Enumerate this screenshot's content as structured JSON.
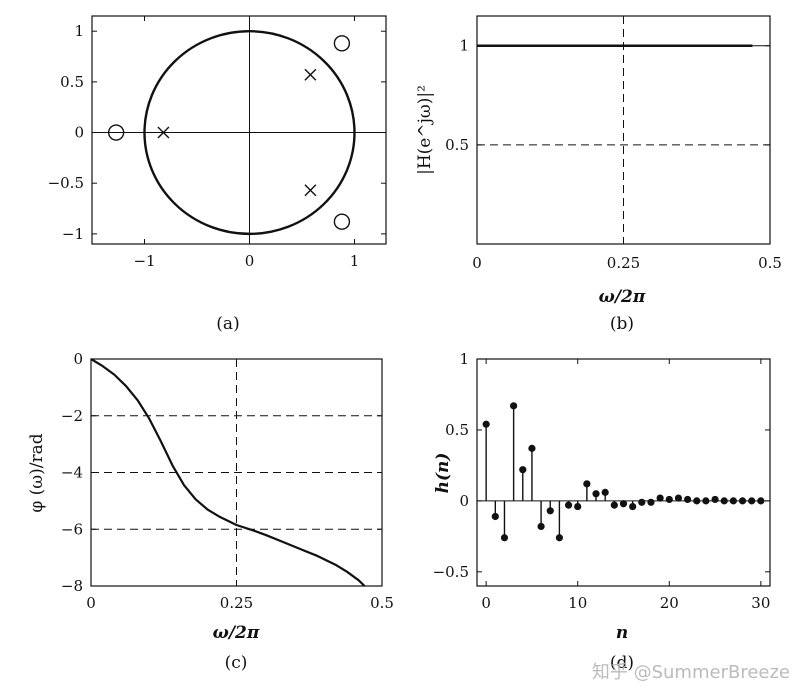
{
  "chart_data": [
    {
      "id": "a",
      "type": "scatter",
      "caption": "(a)",
      "xlim": [
        -1.5,
        1.3
      ],
      "ylim": [
        -1.1,
        1.15
      ],
      "xticks": [
        "−1",
        "0",
        "1"
      ],
      "xtick_values": [
        -1,
        0,
        1
      ],
      "yticks": [
        "1",
        "0.5",
        "0",
        "−0.5",
        "−1"
      ],
      "ytick_values": [
        1,
        0.5,
        0,
        -0.5,
        -1
      ],
      "unit_circle": true,
      "zeros": [
        [
          0.88,
          0.88
        ],
        [
          0.88,
          -0.88
        ],
        [
          -1.27,
          0
        ]
      ],
      "poles": [
        [
          0.58,
          0.57
        ],
        [
          0.58,
          -0.57
        ],
        [
          -0.82,
          0
        ]
      ]
    },
    {
      "id": "b",
      "type": "line",
      "caption": "(b)",
      "xlabel": "ω/2π",
      "ylabel": "|H(e^jω)|²",
      "xlim": [
        0,
        0.5
      ],
      "ylim": [
        0,
        1.15
      ],
      "xticks": [
        "0",
        "0.25",
        "0.5"
      ],
      "xtick_values": [
        0,
        0.25,
        0.5
      ],
      "yticks": [
        "1",
        "0.5"
      ],
      "ytick_values": [
        1,
        0.5
      ],
      "x": [
        0,
        0.47
      ],
      "y": [
        1,
        1
      ]
    },
    {
      "id": "c",
      "type": "line",
      "caption": "(c)",
      "xlabel": "ω/2π",
      "ylabel": "φ (ω)/rad",
      "xlim": [
        0,
        0.5
      ],
      "ylim": [
        -8,
        0
      ],
      "xticks": [
        "0",
        "0.25",
        "0.5"
      ],
      "xtick_values": [
        0,
        0.25,
        0.5
      ],
      "yticks": [
        "0",
        "−2",
        "−4",
        "−6",
        "−8"
      ],
      "ytick_values": [
        0,
        -2,
        -4,
        -6,
        -8
      ],
      "x": [
        0,
        0.02,
        0.04,
        0.06,
        0.08,
        0.1,
        0.12,
        0.14,
        0.16,
        0.18,
        0.2,
        0.22,
        0.25,
        0.28,
        0.3,
        0.33,
        0.36,
        0.39,
        0.42,
        0.44,
        0.46,
        0.47
      ],
      "y": [
        0,
        -0.25,
        -0.55,
        -0.95,
        -1.45,
        -2.1,
        -2.9,
        -3.75,
        -4.45,
        -4.95,
        -5.3,
        -5.55,
        -5.85,
        -6.05,
        -6.2,
        -6.45,
        -6.7,
        -6.95,
        -7.25,
        -7.5,
        -7.8,
        -8.0
      ]
    },
    {
      "id": "d",
      "type": "stem",
      "caption": "(d)",
      "xlabel": "n",
      "ylabel": "h(n)",
      "xlim": [
        -1,
        31
      ],
      "ylim": [
        -0.6,
        1
      ],
      "xticks": [
        "0",
        "10",
        "20",
        "30"
      ],
      "xtick_values": [
        0,
        10,
        20,
        30
      ],
      "yticks": [
        "1",
        "0.5",
        "0",
        "−0.5"
      ],
      "ytick_values": [
        1,
        0.5,
        0,
        -0.5
      ],
      "x": [
        0,
        1,
        2,
        3,
        4,
        5,
        6,
        7,
        8,
        9,
        10,
        11,
        12,
        13,
        14,
        15,
        16,
        17,
        18,
        19,
        20,
        21,
        22,
        23,
        24,
        25,
        26,
        27,
        28,
        29,
        30
      ],
      "y": [
        0.54,
        -0.11,
        -0.26,
        0.67,
        0.22,
        0.37,
        -0.18,
        -0.07,
        -0.26,
        -0.03,
        -0.04,
        0.12,
        0.05,
        0.06,
        -0.03,
        -0.02,
        -0.04,
        -0.01,
        -0.01,
        0.02,
        0.01,
        0.02,
        0.01,
        0.0,
        0.0,
        0.01,
        0.0,
        0.0,
        0.0,
        0.0,
        0.0
      ]
    }
  ],
  "watermark": "知乎 @SummerBreeze"
}
